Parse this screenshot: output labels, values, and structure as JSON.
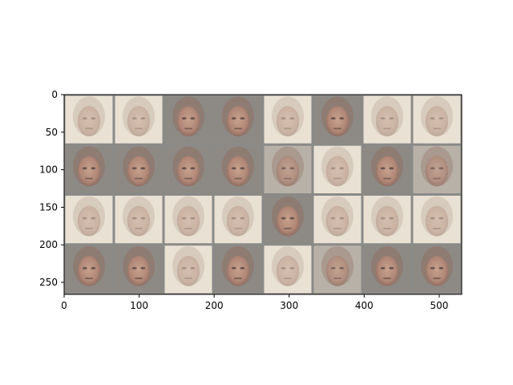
{
  "figure": {
    "kind": "image-grid",
    "description_rows": 4,
    "description_cols": 8,
    "x_ticks": [
      "0",
      "100",
      "200",
      "300",
      "400",
      "500"
    ],
    "y_ticks": [
      "0",
      "50",
      "100",
      "150",
      "200",
      "250"
    ],
    "x_tick_values": [
      0,
      100,
      200,
      300,
      400,
      500
    ],
    "y_tick_values": [
      0,
      50,
      100,
      150,
      200,
      250
    ],
    "x_range": [
      0,
      530
    ],
    "y_range": [
      0,
      266
    ],
    "tiles": [
      [
        "light",
        "light",
        "dark",
        "dark",
        "light",
        "dark",
        "light",
        "light"
      ],
      [
        "dark",
        "dark",
        "dark",
        "dark",
        "mid",
        "light",
        "dark",
        "mid"
      ],
      [
        "light",
        "light",
        "light",
        "light",
        "dark",
        "light",
        "light",
        "light"
      ],
      [
        "dark",
        "dark",
        "light",
        "dark",
        "light",
        "mid",
        "dark",
        "dark"
      ]
    ],
    "colors": {
      "border": "#8a8a88",
      "light_bg": "#e9e2d4",
      "mid_bg": "#b8b1a7",
      "dark_bg": "#8d8a86",
      "face": "#c79b86",
      "face_shadow": "#8f6b5e",
      "eye": "#5a4a46"
    }
  }
}
